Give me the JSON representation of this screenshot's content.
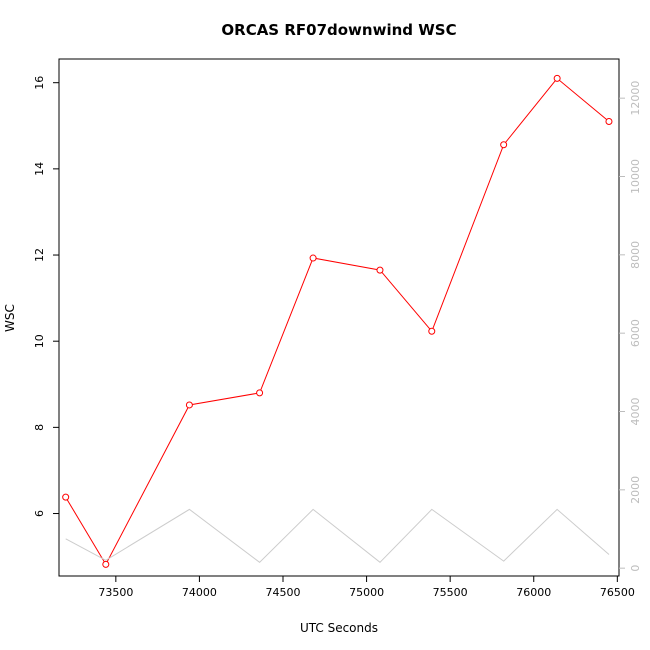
{
  "chart_data": {
    "type": "line",
    "title": "ORCAS RF07downwind WSC",
    "xlabel": "UTC Seconds",
    "ylabel": "WSC",
    "xlim": [
      73160,
      76510
    ],
    "ylim": [
      4.55,
      16.55
    ],
    "y2lim": [
      -200,
      13000
    ],
    "x_ticks": [
      73500,
      74000,
      74500,
      75000,
      75500,
      76000,
      76500
    ],
    "y_ticks": [
      6,
      8,
      10,
      12,
      14,
      16
    ],
    "y2_ticks": [
      0,
      2000,
      4000,
      6000,
      8000,
      10000,
      12000
    ],
    "grid": false,
    "series": [
      {
        "axis": "left",
        "color": "#ff0000",
        "markers": "open-circle",
        "x": [
          73200,
          73440,
          73940,
          74360,
          74680,
          75080,
          75390,
          75820,
          76140,
          76450
        ],
        "y": [
          6.38,
          4.82,
          8.52,
          8.8,
          11.93,
          11.65,
          10.23,
          14.56,
          16.1,
          15.1
        ]
      },
      {
        "axis": "right",
        "color": "#cccccc",
        "markers": "none",
        "x": [
          73200,
          73440,
          73940,
          74360,
          74680,
          75080,
          75390,
          75820,
          76140,
          76450
        ],
        "y": [
          750,
          200,
          1500,
          150,
          1500,
          150,
          1500,
          180,
          1500,
          350
        ]
      }
    ]
  }
}
